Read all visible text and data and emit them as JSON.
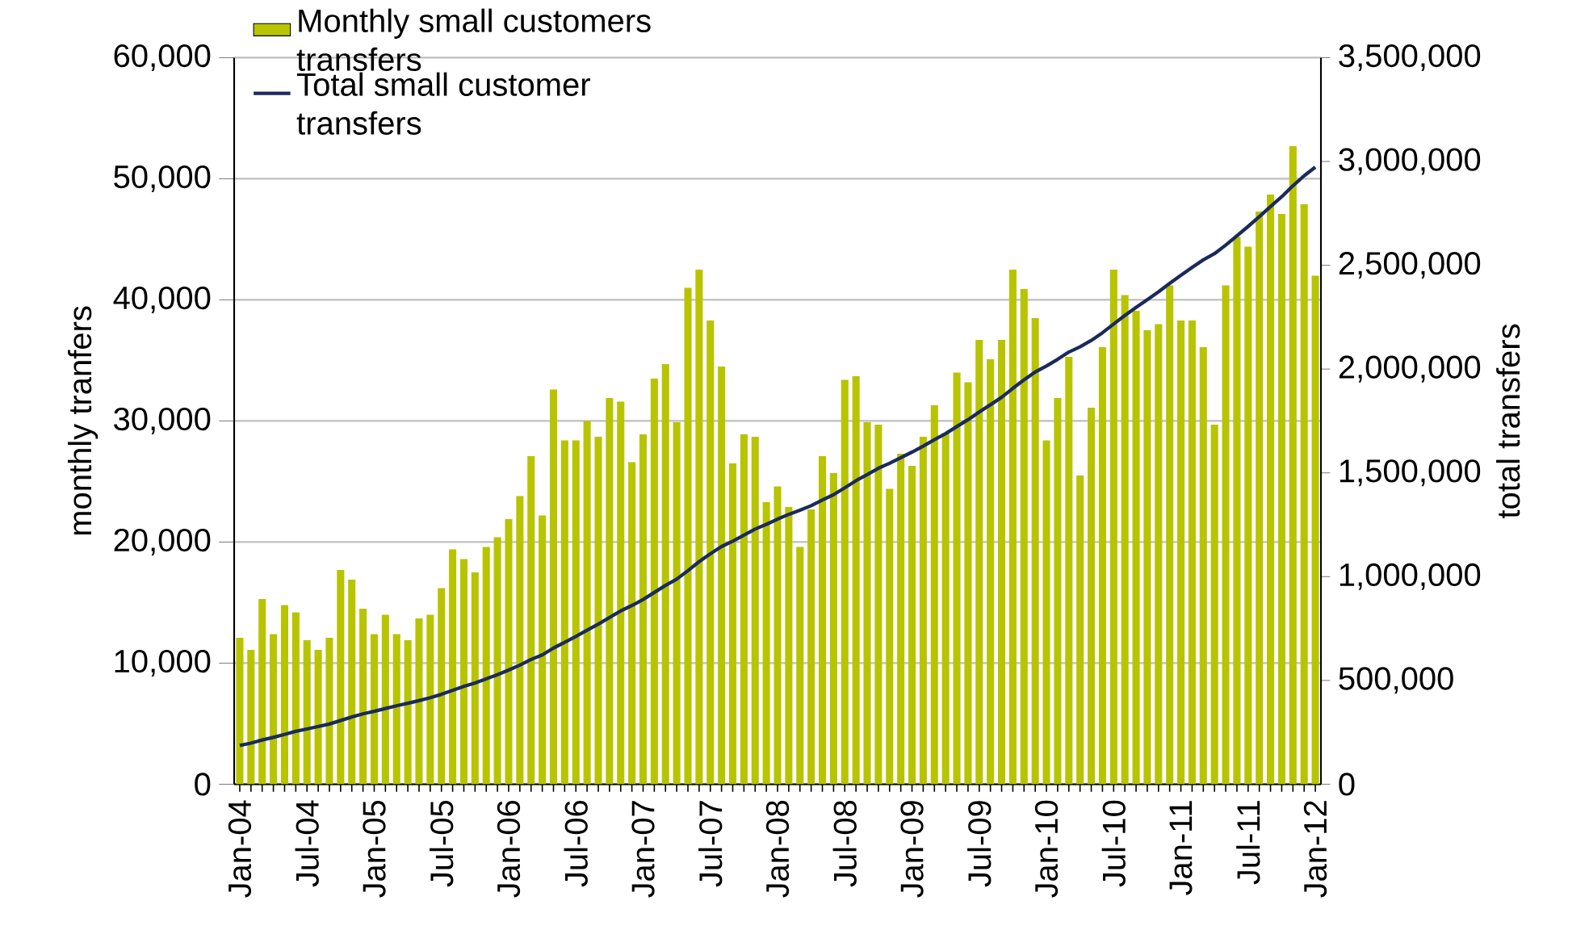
{
  "chart_data": {
    "type": "bar",
    "categories": [
      "Jan-04",
      null,
      null,
      null,
      null,
      null,
      "Jul-04",
      null,
      null,
      null,
      null,
      null,
      "Jan-05",
      null,
      null,
      null,
      null,
      null,
      "Jul-05",
      null,
      null,
      null,
      null,
      null,
      "Jan-06",
      null,
      null,
      null,
      null,
      null,
      "Jul-06",
      null,
      null,
      null,
      null,
      null,
      "Jan-07",
      null,
      null,
      null,
      null,
      null,
      "Jul-07",
      null,
      null,
      null,
      null,
      null,
      "Jan-08",
      null,
      null,
      null,
      null,
      null,
      "Jul-08",
      null,
      null,
      null,
      null,
      null,
      "Jan-09",
      null,
      null,
      null,
      null,
      null,
      "Jul-09",
      null,
      null,
      null,
      null,
      null,
      "Jan-10",
      null,
      null,
      null,
      null,
      null,
      "Jul-10",
      null,
      null,
      null,
      null,
      null,
      "Jan-11",
      null,
      null,
      null,
      null,
      null,
      "Jul-11",
      null,
      null,
      null,
      null,
      null,
      "Jan-12"
    ],
    "series": [
      {
        "name": "Monthly small customers transfers",
        "color": "#b8c400",
        "values": [
          12100,
          11100,
          15300,
          12400,
          14800,
          14200,
          11900,
          11100,
          12100,
          17700,
          16900,
          14500,
          12400,
          14000,
          12400,
          11900,
          13700,
          14000,
          16200,
          19400,
          18600,
          17500,
          19600,
          20400,
          21900,
          23800,
          27100,
          22200,
          32600,
          28400,
          28400,
          30000,
          28700,
          31900,
          31600,
          26600,
          28900,
          33500,
          34700,
          29900,
          41000,
          42500,
          38300,
          34500,
          26500,
          28900,
          28700,
          23300,
          24600,
          22900,
          19600,
          22700,
          27100,
          25700,
          33400,
          33700,
          29900,
          29700,
          24400,
          27300,
          26300,
          28700,
          31300,
          29000,
          34000,
          33200,
          36700,
          35100,
          36700,
          42500,
          40900,
          38500,
          28400,
          31900,
          35300,
          25500,
          31100,
          36100,
          42500,
          40400,
          39100,
          37500,
          38000,
          41200,
          38300,
          38300,
          36100,
          29700,
          41200,
          45200,
          44400,
          47300,
          48700,
          47100,
          52700,
          47900,
          42000
        ]
      },
      {
        "name": "Total small customer transfers",
        "type": "line",
        "axis": "y2",
        "color": "#1b2a5c",
        "values": [
          187000,
          198000,
          213000,
          226000,
          240000,
          255000,
          266000,
          278000,
          290000,
          307000,
          324000,
          339000,
          351000,
          365000,
          378000,
          390000,
          403000,
          417000,
          433000,
          452000,
          471000,
          488000,
          508000,
          528000,
          550000,
          574000,
          601000,
          623000,
          656000,
          684000,
          712000,
          742000,
          771000,
          803000,
          835000,
          861000,
          890000,
          924000,
          958000,
          988000,
          1029000,
          1072000,
          1110000,
          1145000,
          1171000,
          1200000,
          1229000,
          1252000,
          1277000,
          1300000,
          1320000,
          1342000,
          1369000,
          1395000,
          1428000,
          1462000,
          1492000,
          1522000,
          1546000,
          1573000,
          1600000,
          1629000,
          1660000,
          1689000,
          1723000,
          1756000,
          1793000,
          1828000,
          1864000,
          1907000,
          1948000,
          1986000,
          2015000,
          2047000,
          2082000,
          2107000,
          2138000,
          2175000,
          2217000,
          2258000,
          2297000,
          2334000,
          2372000,
          2413000,
          2452000,
          2490000,
          2526000,
          2556000,
          2597000,
          2642000,
          2687000,
          2734000,
          2783000,
          2830000,
          2883000,
          2931000,
          2973000
        ]
      }
    ],
    "ylabel": "monthly tranfers",
    "y2label": "total transfers",
    "ylim": [
      0,
      60000
    ],
    "yticks": [
      {
        "value": 0,
        "label": "0"
      },
      {
        "value": 10000,
        "label": "10,000"
      },
      {
        "value": 20000,
        "label": "20,000"
      },
      {
        "value": 30000,
        "label": "30,000"
      },
      {
        "value": 40000,
        "label": "40,000"
      },
      {
        "value": 50000,
        "label": "50,000"
      },
      {
        "value": 60000,
        "label": "60,000"
      }
    ],
    "y2lim": [
      0,
      3500000
    ],
    "y2ticks": [
      {
        "value": 0,
        "label": "0"
      },
      {
        "value": 500000,
        "label": "500,000"
      },
      {
        "value": 1000000,
        "label": "1,000,000"
      },
      {
        "value": 1500000,
        "label": "1,500,000"
      },
      {
        "value": 2000000,
        "label": "2,000,000"
      },
      {
        "value": 2500000,
        "label": "2,500,000"
      },
      {
        "value": 3000000,
        "label": "3,000,000"
      },
      {
        "value": 3500000,
        "label": "3,500,000"
      }
    ],
    "grid": "y",
    "legend": "top left"
  }
}
